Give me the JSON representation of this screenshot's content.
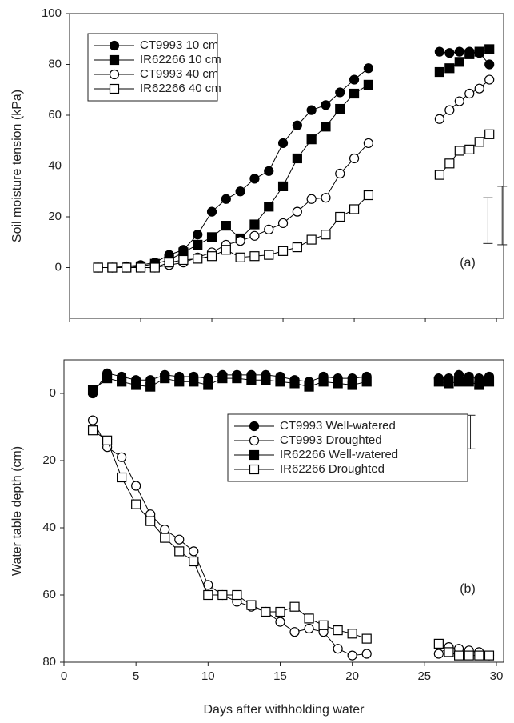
{
  "chart_data": [
    {
      "type": "line",
      "y_label": "Soil moisture tension (kPa)",
      "annotation": "(a)",
      "x": [
        2,
        3,
        4,
        5,
        6,
        7,
        8,
        9,
        10,
        11,
        12,
        13,
        14,
        15,
        16,
        17,
        18,
        19,
        20,
        21,
        22,
        26,
        26.7,
        27.4,
        28.1,
        28.8,
        29.5
      ],
      "xlim": [
        0,
        30.5
      ],
      "xticks": [
        0,
        5,
        10,
        15,
        20,
        25,
        30
      ],
      "show_xtick_labels": false,
      "ylim": [
        -20,
        100
      ],
      "yticks": [
        0,
        20,
        40,
        60,
        80,
        100
      ],
      "invert_y": false,
      "legend_position": "upper left",
      "series": [
        {
          "name": "CT9993 10 cm",
          "color": "#000000",
          "marker": "circle",
          "fill": "#000000",
          "values": [
            0,
            0,
            0.5,
            1,
            2,
            5,
            7,
            13,
            22,
            27,
            30,
            35,
            38,
            49,
            56,
            62,
            64,
            69,
            74,
            78.5,
            null,
            85,
            84.5,
            85,
            85,
            84.5,
            80
          ]
        },
        {
          "name": "IR62266 10 cm",
          "color": "#000000",
          "marker": "square",
          "fill": "#000000",
          "values": [
            0,
            0,
            0,
            0.5,
            1.5,
            3,
            6,
            9,
            12,
            16.5,
            11.5,
            17,
            24,
            32,
            43,
            50.5,
            55.5,
            62.5,
            68.5,
            72,
            null,
            77,
            78.5,
            81,
            84,
            85,
            86
          ]
        },
        {
          "name": "CT9993 40 cm",
          "color": "#000000",
          "marker": "circle",
          "fill": "#ffffff",
          "values": [
            0,
            0,
            0,
            0,
            0,
            1,
            2,
            4,
            6,
            9,
            10.5,
            12.5,
            15,
            17.5,
            22,
            27,
            27.5,
            37,
            43,
            49,
            null,
            58.5,
            62,
            65.5,
            68.5,
            70.5,
            74
          ]
        },
        {
          "name": "IR62266 40 cm",
          "color": "#000000",
          "marker": "square",
          "fill": "#ffffff",
          "values": [
            0,
            0,
            0,
            0,
            0,
            2,
            3,
            3.5,
            4.5,
            7,
            4,
            4.5,
            5,
            6.5,
            8,
            11,
            13,
            20,
            23,
            28.5,
            null,
            36.5,
            41,
            46,
            46.5,
            49.5,
            52.5
          ]
        }
      ],
      "error_bars": [
        {
          "x": 29.4,
          "value": 18.5,
          "error": 9
        },
        {
          "x": 30.4,
          "value": 20.5,
          "error": 11.5
        }
      ]
    },
    {
      "type": "line",
      "y_label": "Water table depth (cm)",
      "x_label": "Days after withholding water",
      "annotation": "(b)",
      "x": [
        2,
        3,
        4,
        5,
        6,
        7,
        8,
        9,
        10,
        11,
        12,
        13,
        14,
        15,
        16,
        17,
        18,
        19,
        20,
        21,
        22,
        26,
        26.7,
        27.4,
        28.1,
        28.8,
        29.5
      ],
      "xlim": [
        0,
        30.5
      ],
      "xticks": [
        0,
        5,
        10,
        15,
        20,
        25,
        30
      ],
      "show_xtick_labels": true,
      "ylim": [
        -10,
        80
      ],
      "yticks": [
        0,
        20,
        40,
        60,
        80
      ],
      "invert_y": true,
      "legend_position": "center right",
      "series": [
        {
          "name": "CT9993 Well-watered",
          "color": "#000000",
          "marker": "circle",
          "fill": "#000000",
          "values": [
            0,
            -6,
            -5,
            -4,
            -4,
            -5.5,
            -5,
            -5,
            -4.5,
            -5.5,
            -5.5,
            -5.5,
            -5.5,
            -5,
            -4,
            -3.5,
            -5,
            -4.5,
            -4.5,
            -5,
            null,
            -4.5,
            -4.5,
            -5.5,
            -5,
            -4.5,
            -5
          ]
        },
        {
          "name": "CT9993 Droughted",
          "color": "#000000",
          "marker": "circle",
          "fill": "#ffffff",
          "values": [
            8,
            16,
            19,
            27.5,
            36,
            40.5,
            43.5,
            47,
            57,
            60,
            62,
            63.5,
            65,
            68,
            71,
            70,
            71,
            76,
            78,
            77.5,
            null,
            77.5,
            75.5,
            76,
            76.5,
            77,
            78
          ]
        },
        {
          "name": "IR62266 Well-watered",
          "color": "#000000",
          "marker": "square",
          "fill": "#000000",
          "values": [
            -1,
            -4.5,
            -3.5,
            -2.5,
            -2,
            -4.5,
            -3.5,
            -3.5,
            -2.5,
            -4.5,
            -4.5,
            -4,
            -4,
            -3.5,
            -3,
            -2,
            -3.5,
            -3,
            -2.5,
            -3.5,
            null,
            -3.5,
            -3,
            -3.5,
            -3.5,
            -2.5,
            -3.5
          ]
        },
        {
          "name": "IR62266 Droughted",
          "color": "#000000",
          "marker": "square",
          "fill": "#ffffff",
          "values": [
            11,
            14,
            25,
            33,
            38,
            43,
            47,
            50,
            60,
            60,
            60,
            63,
            65,
            65,
            63.5,
            67,
            69,
            70.5,
            71.5,
            73,
            null,
            74.5,
            77,
            78,
            78,
            78,
            78
          ]
        }
      ],
      "error_bars": [
        {
          "x": 27.2,
          "value": 12.75,
          "error": 3.75
        },
        {
          "x": 28.2,
          "value": 11.5,
          "error": 5
        }
      ]
    }
  ]
}
